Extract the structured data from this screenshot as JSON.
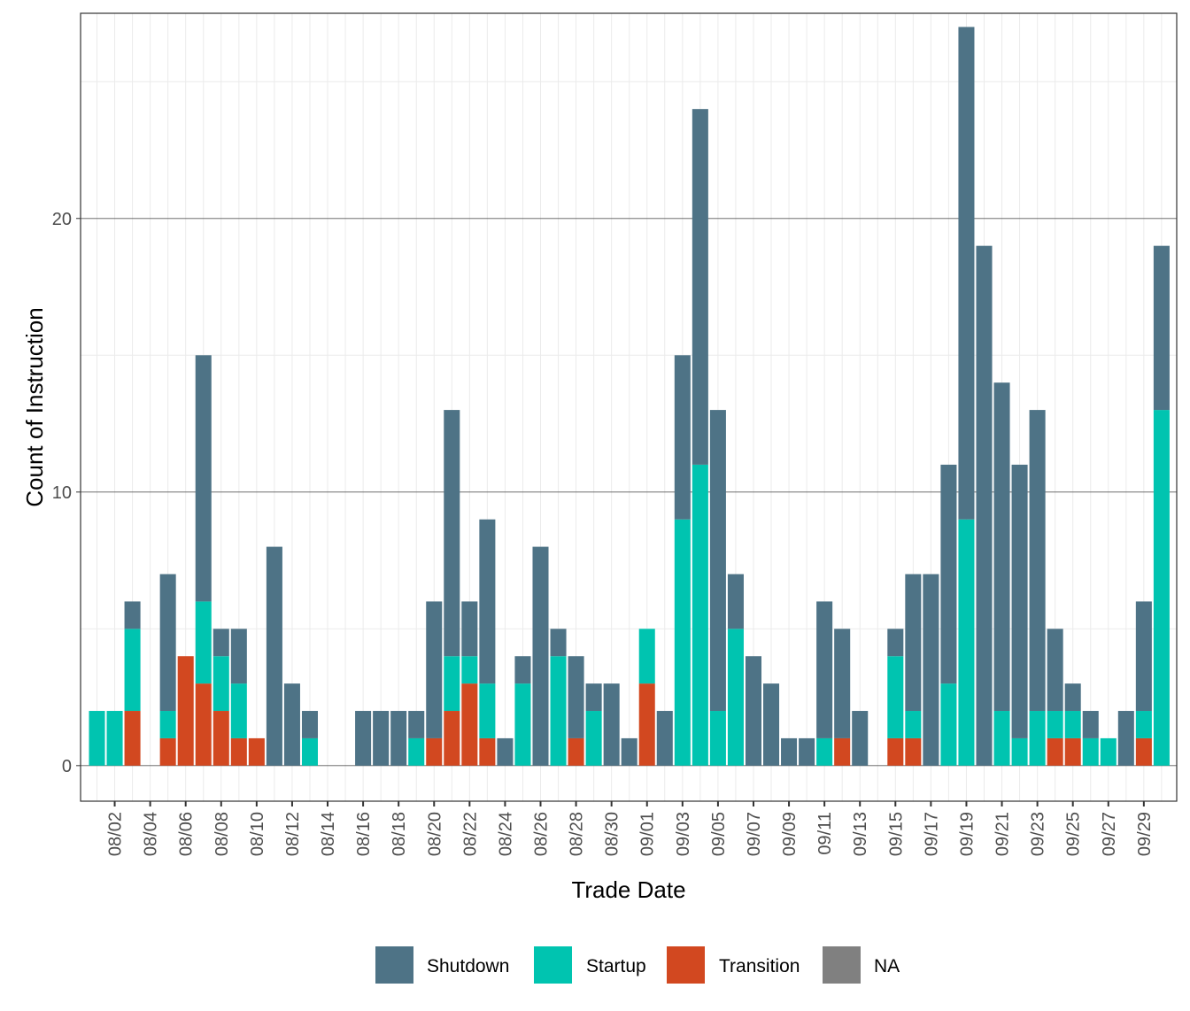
{
  "chart_data": {
    "type": "bar",
    "stacked": true,
    "title": "",
    "xlabel": "Trade Date",
    "ylabel": "Count of Instruction",
    "ylim": [
      -1.3,
      27.5
    ],
    "y_ticks": [
      0,
      10,
      20
    ],
    "grid": true,
    "legend_position": "bottom",
    "categories": [
      "08/01",
      "08/02",
      "08/03",
      "08/04",
      "08/05",
      "08/06",
      "08/07",
      "08/08",
      "08/09",
      "08/10",
      "08/11",
      "08/12",
      "08/13",
      "08/14",
      "08/15",
      "08/16",
      "08/17",
      "08/18",
      "08/19",
      "08/20",
      "08/21",
      "08/22",
      "08/23",
      "08/24",
      "08/25",
      "08/26",
      "08/27",
      "08/28",
      "08/29",
      "08/30",
      "08/31",
      "09/01",
      "09/02",
      "09/03",
      "09/04",
      "09/05",
      "09/06",
      "09/07",
      "09/08",
      "09/09",
      "09/10",
      "09/11",
      "09/12",
      "09/13",
      "09/14",
      "09/15",
      "09/16",
      "09/17",
      "09/18",
      "09/19",
      "09/20",
      "09/21",
      "09/22",
      "09/23",
      "09/24",
      "09/25",
      "09/26",
      "09/27",
      "09/28",
      "09/29",
      "09/30"
    ],
    "x_tick_labels": [
      "08/02",
      "08/04",
      "08/06",
      "08/08",
      "08/10",
      "08/12",
      "08/14",
      "08/16",
      "08/18",
      "08/20",
      "08/22",
      "08/24",
      "08/26",
      "08/28",
      "08/30",
      "09/01",
      "09/03",
      "09/05",
      "09/07",
      "09/09",
      "09/11",
      "09/13",
      "09/15",
      "09/17",
      "09/19",
      "09/21",
      "09/23",
      "09/25",
      "09/27",
      "09/29"
    ],
    "series": [
      {
        "name": "Transition",
        "color": "#d24820",
        "values": [
          0,
          0,
          2,
          0,
          1,
          4,
          3,
          2,
          1,
          1,
          0,
          0,
          0,
          0,
          0,
          0,
          0,
          0,
          0,
          1,
          2,
          3,
          1,
          0,
          0,
          0,
          0,
          1,
          0,
          0,
          0,
          3,
          0,
          0,
          0,
          0,
          0,
          0,
          0,
          0,
          0,
          0,
          1,
          0,
          0,
          1,
          1,
          0,
          0,
          0,
          0,
          0,
          0,
          0,
          1,
          1,
          0,
          0,
          0,
          1,
          0
        ]
      },
      {
        "name": "Startup",
        "color": "#00c4b0",
        "values": [
          2,
          2,
          3,
          0,
          1,
          0,
          3,
          2,
          2,
          0,
          0,
          0,
          1,
          0,
          0,
          0,
          0,
          0,
          1,
          0,
          2,
          1,
          2,
          0,
          3,
          0,
          4,
          0,
          2,
          0,
          0,
          2,
          0,
          9,
          11,
          2,
          5,
          0,
          0,
          0,
          0,
          1,
          0,
          0,
          0,
          3,
          1,
          0,
          3,
          9,
          0,
          2,
          1,
          2,
          1,
          1,
          1,
          1,
          0,
          1,
          13
        ]
      },
      {
        "name": "Shutdown",
        "color": "#4e7386",
        "values": [
          0,
          0,
          1,
          0,
          5,
          0,
          9,
          1,
          2,
          0,
          8,
          3,
          1,
          0,
          0,
          2,
          2,
          2,
          1,
          5,
          9,
          2,
          6,
          1,
          1,
          8,
          1,
          3,
          1,
          3,
          1,
          0,
          2,
          6,
          13,
          11,
          2,
          4,
          3,
          1,
          1,
          5,
          4,
          2,
          0,
          1,
          5,
          7,
          8,
          18,
          19,
          12,
          10,
          11,
          3,
          1,
          1,
          0,
          2,
          4,
          6
        ]
      },
      {
        "name": "NA",
        "color": "#808080",
        "values": [
          0,
          0,
          0,
          0,
          0,
          0,
          0,
          0,
          0,
          0,
          0,
          0,
          0,
          0,
          0,
          0,
          0,
          0,
          0,
          0,
          0,
          0,
          0,
          0,
          0,
          0,
          0,
          0,
          0,
          0,
          0,
          0,
          0,
          0,
          0,
          0,
          0,
          0,
          0,
          0,
          0,
          0,
          0,
          0,
          0,
          0,
          0,
          0,
          0,
          0,
          0,
          0,
          0,
          0,
          0,
          0,
          0,
          0,
          0,
          0,
          0
        ]
      }
    ],
    "legend": [
      {
        "label": "Shutdown",
        "color": "#4e7386"
      },
      {
        "label": "Startup",
        "color": "#00c4b0"
      },
      {
        "label": "Transition",
        "color": "#d24820"
      },
      {
        "label": "NA",
        "color": "#808080"
      }
    ]
  }
}
